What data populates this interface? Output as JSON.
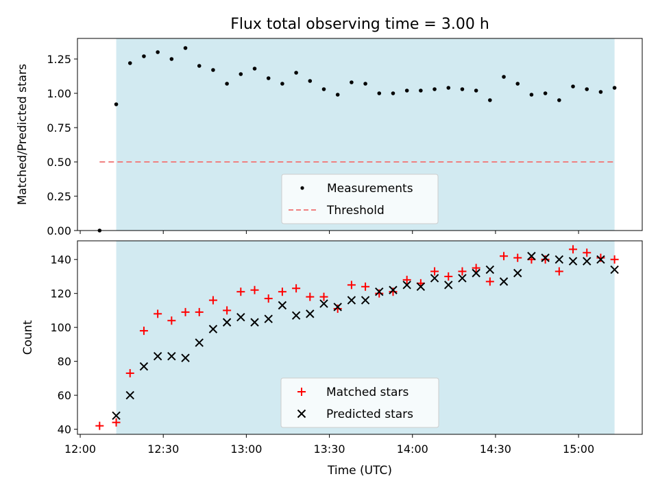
{
  "figure": {
    "title": "Flux total observing time = 3.00 h",
    "xlabel": "Time (UTC)",
    "x_ticks": [
      {
        "t": 0,
        "label": "12:00"
      },
      {
        "t": 30,
        "label": "12:30"
      },
      {
        "t": 60,
        "label": "13:00"
      },
      {
        "t": 90,
        "label": "13:30"
      },
      {
        "t": 120,
        "label": "14:00"
      },
      {
        "t": 150,
        "label": "14:30"
      },
      {
        "t": 180,
        "label": "15:00"
      }
    ]
  },
  "colors": {
    "shade": "#add8e6",
    "threshold": "#f08080",
    "matched": "#ff0000",
    "predicted": "#000000",
    "measurements": "#000000"
  },
  "chart_data": [
    {
      "type": "scatter",
      "title": "Flux total observing time = 3.00 h",
      "xlabel": "",
      "ylabel": "Matched/Predicted stars",
      "xlim": [
        "11:59",
        "15:23"
      ],
      "ylim": [
        0,
        1.4
      ],
      "y_ticks": [
        {
          "v": 0,
          "label": "0.00"
        },
        {
          "v": 0.25,
          "label": "0.25"
        },
        {
          "v": 0.5,
          "label": "0.50"
        },
        {
          "v": 0.75,
          "label": "0.75"
        },
        {
          "v": 1.0,
          "label": "1.00"
        },
        {
          "v": 1.25,
          "label": "1.25"
        }
      ],
      "shaded_interval": [
        "12:13",
        "15:13"
      ],
      "legend_position": "lower center",
      "series": [
        {
          "name": "Measurements",
          "marker": "dot",
          "x": [
            "12:07",
            "12:13",
            "12:18",
            "12:23",
            "12:28",
            "12:33",
            "12:38",
            "12:43",
            "12:48",
            "12:53",
            "12:58",
            "13:03",
            "13:08",
            "13:13",
            "13:18",
            "13:23",
            "13:28",
            "13:33",
            "13:38",
            "13:43",
            "13:48",
            "13:53",
            "13:58",
            "14:03",
            "14:08",
            "14:13",
            "14:18",
            "14:23",
            "14:28",
            "14:33",
            "14:38",
            "14:43",
            "14:48",
            "14:53",
            "14:58",
            "15:03",
            "15:08",
            "15:13"
          ],
          "y": [
            0.0,
            0.92,
            1.22,
            1.27,
            1.3,
            1.25,
            1.33,
            1.2,
            1.17,
            1.07,
            1.14,
            1.18,
            1.11,
            1.07,
            1.15,
            1.09,
            1.03,
            0.99,
            1.08,
            1.07,
            1.0,
            1.0,
            1.02,
            1.02,
            1.03,
            1.04,
            1.03,
            1.02,
            0.95,
            1.12,
            1.07,
            0.99,
            1.0,
            0.95,
            1.05,
            1.03,
            1.01,
            1.04
          ]
        },
        {
          "name": "Threshold",
          "marker": "dashed-line",
          "x": [
            "12:07",
            "15:13"
          ],
          "y": [
            0.5,
            0.5
          ]
        }
      ]
    },
    {
      "type": "scatter",
      "xlabel": "Time (UTC)",
      "ylabel": "Count",
      "xlim": [
        "11:59",
        "15:23"
      ],
      "ylim": [
        37,
        151
      ],
      "y_ticks": [
        {
          "v": 40,
          "label": "40"
        },
        {
          "v": 60,
          "label": "60"
        },
        {
          "v": 80,
          "label": "80"
        },
        {
          "v": 100,
          "label": "100"
        },
        {
          "v": 120,
          "label": "120"
        },
        {
          "v": 140,
          "label": "140"
        }
      ],
      "shaded_interval": [
        "12:13",
        "15:13"
      ],
      "legend_position": "lower center",
      "series": [
        {
          "name": "Matched stars",
          "marker": "plus",
          "x": [
            "12:07",
            "12:13",
            "12:18",
            "12:23",
            "12:28",
            "12:33",
            "12:38",
            "12:43",
            "12:48",
            "12:53",
            "12:58",
            "13:03",
            "13:08",
            "13:13",
            "13:18",
            "13:23",
            "13:28",
            "13:33",
            "13:38",
            "13:43",
            "13:48",
            "13:53",
            "13:58",
            "14:03",
            "14:08",
            "14:13",
            "14:18",
            "14:23",
            "14:28",
            "14:33",
            "14:38",
            "14:43",
            "14:48",
            "14:53",
            "14:58",
            "15:03",
            "15:08",
            "15:13"
          ],
          "y": [
            42,
            44,
            73,
            98,
            108,
            104,
            109,
            109,
            116,
            110,
            121,
            122,
            117,
            121,
            123,
            118,
            118,
            111,
            125,
            124,
            120,
            121,
            128,
            126,
            133,
            130,
            133,
            135,
            127,
            142,
            141,
            140,
            140,
            133,
            146,
            144,
            141,
            140
          ]
        },
        {
          "name": "Predicted stars",
          "marker": "x",
          "x": [
            "12:13",
            "12:18",
            "12:23",
            "12:28",
            "12:33",
            "12:38",
            "12:43",
            "12:48",
            "12:53",
            "12:58",
            "13:03",
            "13:08",
            "13:13",
            "13:18",
            "13:23",
            "13:28",
            "13:33",
            "13:38",
            "13:43",
            "13:48",
            "13:53",
            "13:58",
            "14:03",
            "14:08",
            "14:13",
            "14:18",
            "14:23",
            "14:28",
            "14:33",
            "14:38",
            "14:43",
            "14:48",
            "14:53",
            "14:58",
            "15:03",
            "15:08",
            "15:13"
          ],
          "y": [
            48,
            60,
            77,
            83,
            83,
            82,
            91,
            99,
            103,
            106,
            103,
            105,
            113,
            107,
            108,
            114,
            112,
            116,
            116,
            121,
            122,
            125,
            124,
            129,
            125,
            129,
            132,
            134,
            127,
            132,
            142,
            141,
            140,
            139,
            139,
            140,
            134
          ]
        }
      ]
    }
  ]
}
